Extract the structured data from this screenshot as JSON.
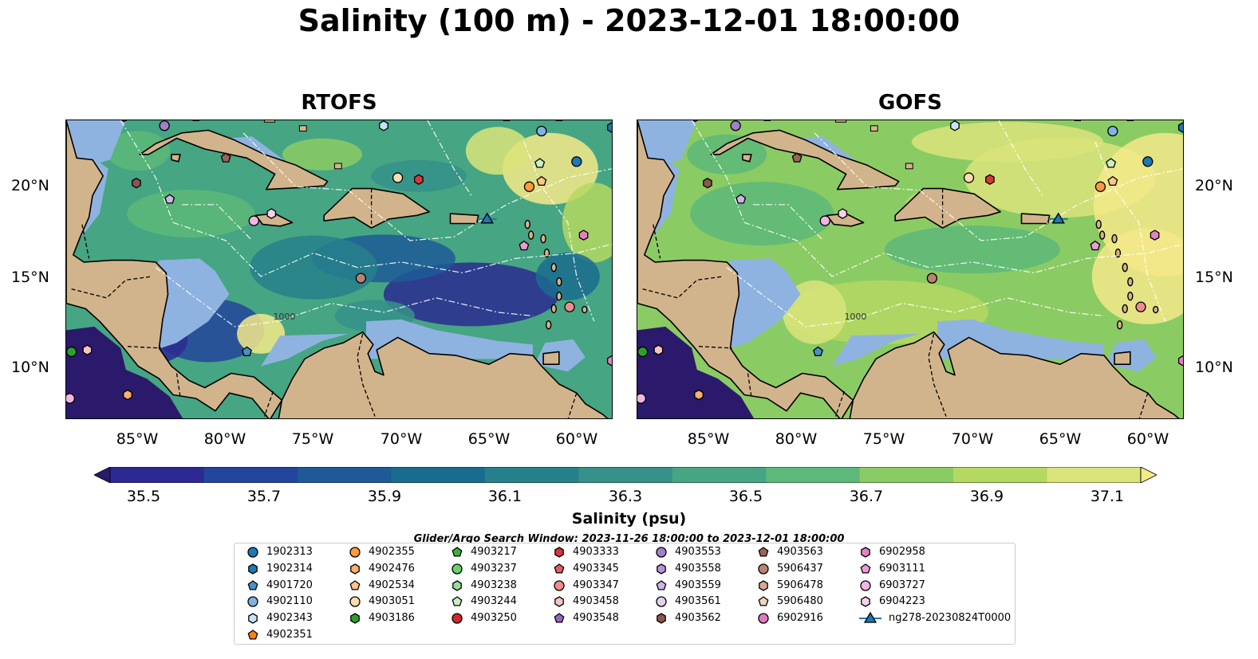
{
  "title": "Salinity (100 m) - 2023-12-01 18:00:00",
  "panels": [
    {
      "title": "RTOFS",
      "model": "rtofs"
    },
    {
      "title": "GOFS",
      "model": "gofs"
    }
  ],
  "lat_labels": [
    "20°N",
    "15°N",
    "10°N"
  ],
  "lon_labels": [
    "85°W",
    "80°W",
    "75°W",
    "70°W",
    "65°W",
    "60°W"
  ],
  "isobath_label": "1000",
  "colorbar": {
    "label": "Salinity (psu)",
    "ticks": [
      "35.5",
      "35.7",
      "35.9",
      "36.1",
      "36.3",
      "36.5",
      "36.7",
      "36.9",
      "37.1"
    ],
    "colors": [
      "#2b1a6b",
      "#2c2a92",
      "#23459b",
      "#1d5a97",
      "#1a6c8f",
      "#26808b",
      "#35918a",
      "#46a583",
      "#5cb979",
      "#8bcb64",
      "#b5d862",
      "#d9e47a",
      "#f5e98a"
    ]
  },
  "colors": {
    "land": "#d2b48c",
    "shelf": "#8fb3e0",
    "deep_ocean": "#2a1c6a",
    "legend_border": "#cccccc"
  },
  "search_window": "Glider/Argo Search Window: 2023-11-26 18:00:00 to 2023-12-01 18:00:00",
  "legend": {
    "columns": [
      [
        {
          "label": "1902313",
          "marker": "circle",
          "color": "#1f77b4"
        },
        {
          "label": "1902314",
          "marker": "hexagon",
          "color": "#1f77b4"
        },
        {
          "label": "4901720",
          "marker": "pentagon",
          "color": "#4a90c4"
        },
        {
          "label": "4902110",
          "marker": "circle",
          "color": "#7fb3e0"
        },
        {
          "label": "4902343",
          "marker": "hexagon",
          "color": "#c6e2f5"
        },
        {
          "label": "4902351",
          "marker": "pentagon",
          "color": "#ff7f0e"
        }
      ],
      [
        {
          "label": "4902355",
          "marker": "circle",
          "color": "#ff9a3c"
        },
        {
          "label": "4902476",
          "marker": "hexagon",
          "color": "#ffb066"
        },
        {
          "label": "4902534",
          "marker": "pentagon",
          "color": "#ffc48a"
        },
        {
          "label": "4903051",
          "marker": "circle",
          "color": "#ffdcb0"
        },
        {
          "label": "4903186",
          "marker": "hexagon",
          "color": "#2ca02c"
        }
      ],
      [
        {
          "label": "4903217",
          "marker": "pentagon",
          "color": "#3cb03c"
        },
        {
          "label": "4903237",
          "marker": "circle",
          "color": "#6bd06b"
        },
        {
          "label": "4903238",
          "marker": "hexagon",
          "color": "#95dc95"
        },
        {
          "label": "4903244",
          "marker": "pentagon",
          "color": "#c9f0c0"
        },
        {
          "label": "4903250",
          "marker": "circle",
          "color": "#d62728"
        }
      ],
      [
        {
          "label": "4903333",
          "marker": "hexagon",
          "color": "#d9363b"
        },
        {
          "label": "4903345",
          "marker": "pentagon",
          "color": "#e45c5c"
        },
        {
          "label": "4903347",
          "marker": "circle",
          "color": "#f08c8c"
        },
        {
          "label": "4903458",
          "marker": "hexagon",
          "color": "#f7c2c0"
        },
        {
          "label": "4903548",
          "marker": "pentagon",
          "color": "#9467bd"
        }
      ],
      [
        {
          "label": "4903553",
          "marker": "circle",
          "color": "#a27fcb"
        },
        {
          "label": "4903558",
          "marker": "hexagon",
          "color": "#b596d8"
        },
        {
          "label": "4903559",
          "marker": "pentagon",
          "color": "#ccb4e6"
        },
        {
          "label": "4903561",
          "marker": "circle",
          "color": "#e2d2f2"
        },
        {
          "label": "4903562",
          "marker": "hexagon",
          "color": "#8c564b"
        }
      ],
      [
        {
          "label": "4903563",
          "marker": "pentagon",
          "color": "#9a6458"
        },
        {
          "label": "5906437",
          "marker": "circle",
          "color": "#b98372"
        },
        {
          "label": "5906478",
          "marker": "hexagon",
          "color": "#d8a892"
        },
        {
          "label": "5906480",
          "marker": "pentagon",
          "color": "#f2d2c2"
        },
        {
          "label": "6902916",
          "marker": "circle",
          "color": "#e377c2"
        }
      ],
      [
        {
          "label": "6902958",
          "marker": "hexagon",
          "color": "#e680c6"
        },
        {
          "label": "6903111",
          "marker": "pentagon",
          "color": "#ef9ad6"
        },
        {
          "label": "6903727",
          "marker": "circle",
          "color": "#f4b4e2"
        },
        {
          "label": "6904223",
          "marker": "hexagon",
          "color": "#f8d0ee"
        },
        {
          "label": "ng278-20230824T0000",
          "marker": "glider",
          "color": "#1f77b4"
        }
      ]
    ]
  },
  "floats": [
    {
      "lon": -85.8,
      "lat": 23.9,
      "marker": "hexagon",
      "color": "#d9363b"
    },
    {
      "lon": -83.5,
      "lat": 23.4,
      "marker": "circle",
      "color": "#a27fcb"
    },
    {
      "lon": -81.7,
      "lat": 23.9,
      "marker": "pentagon",
      "color": "#c9f0c0"
    },
    {
      "lon": -71.0,
      "lat": 23.4,
      "marker": "hexagon",
      "color": "#c6e2f5"
    },
    {
      "lon": -64.0,
      "lat": 23.9,
      "marker": "pentagon",
      "color": "#c9f0c0"
    },
    {
      "lon": -62.0,
      "lat": 23.1,
      "marker": "circle",
      "color": "#7fb3e0"
    },
    {
      "lon": -61.0,
      "lat": 23.9,
      "marker": "pentagon",
      "color": "#ef9ad6"
    },
    {
      "lon": -58.0,
      "lat": 23.3,
      "marker": "hexagon",
      "color": "#1f77b4"
    },
    {
      "lon": -80.0,
      "lat": 21.6,
      "marker": "pentagon",
      "color": "#9a6458"
    },
    {
      "lon": -85.1,
      "lat": 20.2,
      "marker": "hexagon",
      "color": "#8c564b"
    },
    {
      "lon": -83.2,
      "lat": 19.3,
      "marker": "pentagon",
      "color": "#ccb4e6"
    },
    {
      "lon": -70.2,
      "lat": 20.5,
      "marker": "circle",
      "color": "#ffdcb0"
    },
    {
      "lon": -69.0,
      "lat": 20.4,
      "marker": "hexagon",
      "color": "#d9363b"
    },
    {
      "lon": -60.0,
      "lat": 21.4,
      "marker": "circle",
      "color": "#1f77b4"
    },
    {
      "lon": -62.1,
      "lat": 21.3,
      "marker": "pentagon",
      "color": "#c9f0c0"
    },
    {
      "lon": -62.7,
      "lat": 20.0,
      "marker": "circle",
      "color": "#ff9a3c"
    },
    {
      "lon": -62.0,
      "lat": 20.3,
      "marker": "pentagon",
      "color": "#ffc48a"
    },
    {
      "lon": -78.4,
      "lat": 18.1,
      "marker": "circle",
      "color": "#f4b4e2"
    },
    {
      "lon": -77.4,
      "lat": 18.5,
      "marker": "hexagon",
      "color": "#f8d0ee"
    },
    {
      "lon": -63.0,
      "lat": 16.7,
      "marker": "pentagon",
      "color": "#ef9ad6"
    },
    {
      "lon": -59.6,
      "lat": 17.3,
      "marker": "hexagon",
      "color": "#e680c6"
    },
    {
      "lon": -72.3,
      "lat": 14.9,
      "marker": "circle",
      "color": "#b98372"
    },
    {
      "lon": -60.4,
      "lat": 13.3,
      "marker": "circle",
      "color": "#f08c8c"
    },
    {
      "lon": -78.8,
      "lat": 10.8,
      "marker": "pentagon",
      "color": "#4a90c4"
    },
    {
      "lon": -88.8,
      "lat": 10.8,
      "marker": "circle",
      "color": "#2ca02c"
    },
    {
      "lon": -87.9,
      "lat": 10.9,
      "marker": "hexagon",
      "color": "#f7c2c0"
    },
    {
      "lon": -88.9,
      "lat": 8.2,
      "marker": "circle",
      "color": "#f4b4e2"
    },
    {
      "lon": -85.6,
      "lat": 8.4,
      "marker": "hexagon",
      "color": "#ffb066"
    },
    {
      "lon": -58.0,
      "lat": 10.3,
      "marker": "hexagon",
      "color": "#e680c6"
    }
  ],
  "glider": {
    "lon": -65.1,
    "lat": 18.2,
    "color": "#1f77b4"
  }
}
